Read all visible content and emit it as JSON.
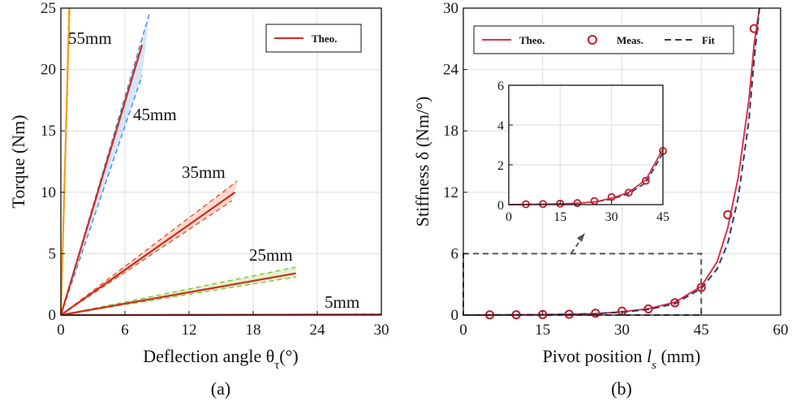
{
  "colors": {
    "theo": "#e0304a",
    "meas": "#c0202a",
    "fit": "#2e3a6e",
    "theo_a": "#d42a1e",
    "c55": "#f0a020",
    "c45": "#3a8fe0",
    "c35": "#e0582a",
    "c25": "#7cc92a",
    "c5": "#b060d0",
    "dash_box": "#555555"
  },
  "chart_data": [
    {
      "panel": "a",
      "type": "line",
      "caption": "(a)",
      "xlabel": "Deflection angle θ",
      "xlabel_sub": "τ",
      "xlabel_unit": "(°)",
      "ylabel": "Torque (Nm)",
      "xlim": [
        0,
        30
      ],
      "ylim": [
        0,
        25
      ],
      "xticks": [
        "0",
        "6",
        "12",
        "18",
        "24",
        "30"
      ],
      "yticks": [
        "0",
        "5",
        "10",
        "15",
        "20",
        "25"
      ],
      "grid": true,
      "legend": {
        "position": "top-right",
        "entries": [
          "Theo."
        ]
      },
      "series": [
        {
          "name": "55mm",
          "label": "55mm",
          "colorKey": "c55",
          "theo_x": [
            0,
            0.8
          ],
          "theo_y": [
            0,
            25
          ],
          "band_upper_x": [
            0,
            0.85
          ],
          "band_upper_y": [
            0,
            25
          ],
          "band_lower_x": [
            0,
            0.75
          ],
          "band_lower_y": [
            0,
            25
          ]
        },
        {
          "name": "45mm",
          "label": "45mm",
          "colorKey": "c45",
          "theo_x": [
            0,
            7.6
          ],
          "theo_y": [
            0,
            22.0
          ],
          "band_upper_x": [
            0,
            8.3
          ],
          "band_upper_y": [
            0,
            24.6
          ],
          "band_lower_x": [
            0,
            7.6
          ],
          "band_lower_y": [
            0,
            19.5
          ]
        },
        {
          "name": "35mm",
          "label": "35mm",
          "colorKey": "c35",
          "theo_x": [
            0,
            16.3
          ],
          "theo_y": [
            0,
            10.0
          ],
          "band_upper_x": [
            0,
            16.5
          ],
          "band_upper_y": [
            0,
            10.9
          ],
          "band_lower_x": [
            0,
            16.0
          ],
          "band_lower_y": [
            0,
            9.3
          ]
        },
        {
          "name": "25mm",
          "label": "25mm",
          "colorKey": "c25",
          "theo_x": [
            0,
            22.0
          ],
          "theo_y": [
            0,
            3.4
          ],
          "band_upper_x": [
            0,
            22.0
          ],
          "band_upper_y": [
            0,
            3.9
          ],
          "band_lower_x": [
            0,
            22.0
          ],
          "band_lower_y": [
            0,
            3.1
          ]
        },
        {
          "name": "5mm",
          "label": "5mm",
          "colorKey": "c5",
          "theo_x": [
            0,
            30
          ],
          "theo_y": [
            0,
            0.04
          ],
          "band_upper_x": [
            0,
            30
          ],
          "band_upper_y": [
            0,
            0.08
          ],
          "band_lower_x": [
            0,
            30
          ],
          "band_lower_y": [
            0,
            0.02
          ]
        }
      ]
    },
    {
      "panel": "b",
      "type": "line",
      "caption": "(b)",
      "xlabel": "Pivot position ",
      "xlabel_var": "l",
      "xlabel_sub": "s",
      "xlabel_unit": " (mm)",
      "ylabel": "Stiffness δ (Nm/°)",
      "xlim": [
        0,
        60
      ],
      "ylim": [
        0,
        30
      ],
      "xticks": [
        "0",
        "15",
        "30",
        "45",
        "60"
      ],
      "yticks": [
        "0",
        "6",
        "12",
        "18",
        "24",
        "30"
      ],
      "grid": true,
      "legend": {
        "position": "top",
        "entries": [
          "Theo.",
          "Meas.",
          "Fit"
        ]
      },
      "measured": {
        "x": [
          5,
          10,
          15,
          20,
          25,
          30,
          35,
          40,
          45,
          50,
          55
        ],
        "y": [
          0.02,
          0.03,
          0.05,
          0.08,
          0.18,
          0.38,
          0.6,
          1.2,
          2.7,
          9.8,
          28.0
        ]
      },
      "theo": {
        "x": [
          0,
          5,
          10,
          15,
          20,
          25,
          30,
          35,
          40,
          45,
          48,
          50,
          52,
          54,
          55,
          56
        ],
        "y": [
          0.0,
          0.01,
          0.02,
          0.04,
          0.07,
          0.14,
          0.32,
          0.62,
          1.25,
          2.8,
          5.2,
          8.5,
          13.5,
          21.0,
          26.5,
          30.0
        ]
      },
      "fit": {
        "x": [
          0,
          5,
          10,
          15,
          20,
          25,
          30,
          35,
          40,
          45,
          48,
          50,
          52,
          54,
          55,
          56
        ],
        "y": [
          0.0,
          0.01,
          0.02,
          0.04,
          0.07,
          0.13,
          0.28,
          0.55,
          1.1,
          2.6,
          4.5,
          7.0,
          11.5,
          19.0,
          25.0,
          30.0
        ]
      },
      "zoom_box": {
        "x": [
          0,
          45
        ],
        "y": [
          0,
          6
        ]
      },
      "inset": {
        "xlim": [
          0,
          45
        ],
        "ylim": [
          0,
          6
        ],
        "xticks": [
          "0",
          "15",
          "30",
          "45"
        ],
        "yticks": [
          "0",
          "2",
          "4",
          "6"
        ]
      }
    }
  ]
}
